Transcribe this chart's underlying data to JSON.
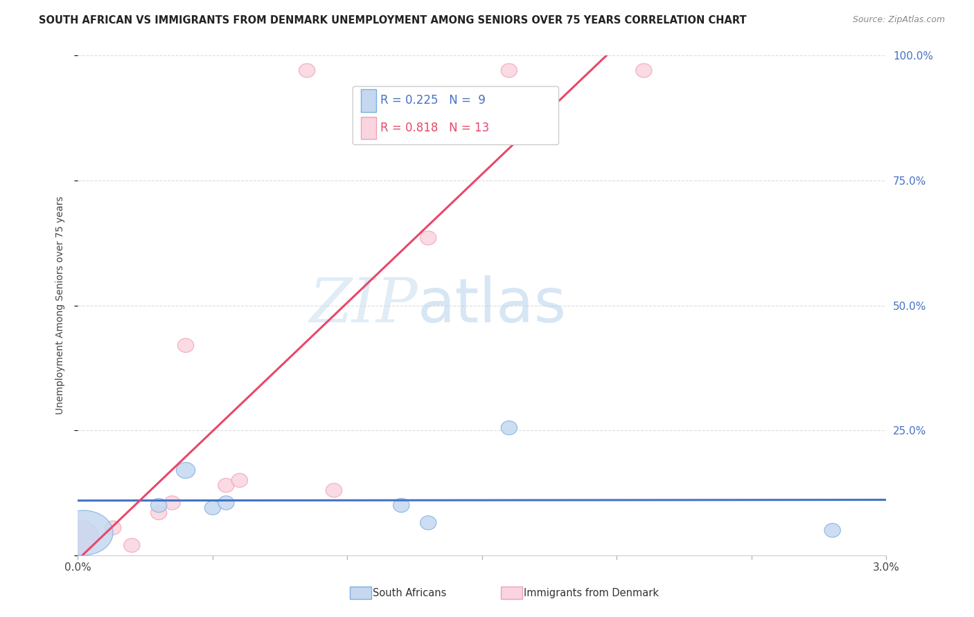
{
  "title": "SOUTH AFRICAN VS IMMIGRANTS FROM DENMARK UNEMPLOYMENT AMONG SENIORS OVER 75 YEARS CORRELATION CHART",
  "source": "Source: ZipAtlas.com",
  "ylabel": "Unemployment Among Seniors over 75 years",
  "xlim": [
    0.0,
    0.03
  ],
  "ylim": [
    0.0,
    1.0
  ],
  "xticks": [
    0.0,
    0.005,
    0.01,
    0.015,
    0.02,
    0.025,
    0.03
  ],
  "xticklabels": [
    "0.0%",
    "",
    "",
    "",
    "",
    "",
    "3.0%"
  ],
  "yticks": [
    0.0,
    0.25,
    0.5,
    0.75,
    1.0
  ],
  "yticklabels_right": [
    "",
    "25.0%",
    "50.0%",
    "75.0%",
    "100.0%"
  ],
  "south_africans_x": [
    0.0002,
    0.003,
    0.004,
    0.005,
    0.0055,
    0.012,
    0.013,
    0.016,
    0.028
  ],
  "south_africans_y": [
    0.05,
    0.1,
    0.17,
    0.095,
    0.105,
    0.1,
    0.065,
    0.255,
    0.05
  ],
  "south_africans_size_w": [
    0.0012,
    0.0006,
    0.0007,
    0.0006,
    0.0006,
    0.0006,
    0.0006,
    0.0006,
    0.0006
  ],
  "south_africans_size_h": [
    0.048,
    0.028,
    0.032,
    0.028,
    0.028,
    0.028,
    0.028,
    0.028,
    0.028
  ],
  "immigrants_denmark_x": [
    5e-05,
    0.0013,
    0.002,
    0.003,
    0.0035,
    0.004,
    0.0055,
    0.006,
    0.0085,
    0.0095,
    0.013,
    0.016,
    0.021
  ],
  "immigrants_denmark_y": [
    0.04,
    0.055,
    0.02,
    0.085,
    0.105,
    0.42,
    0.14,
    0.15,
    0.97,
    0.13,
    0.635,
    0.97,
    0.97
  ],
  "immigrants_denmark_size_w": [
    0.0006,
    0.0006,
    0.0006,
    0.0006,
    0.0006,
    0.0006,
    0.0006,
    0.0006,
    0.0006,
    0.0006,
    0.0006,
    0.0006,
    0.0006
  ],
  "immigrants_denmark_size_h": [
    0.028,
    0.028,
    0.028,
    0.028,
    0.028,
    0.028,
    0.028,
    0.028,
    0.028,
    0.028,
    0.028,
    0.028,
    0.028
  ],
  "sa_R": 0.225,
  "sa_N": 9,
  "dk_R": 0.818,
  "dk_N": 13,
  "sa_color": "#c5d8f0",
  "sa_edge_color": "#7baee0",
  "sa_line_color": "#4472c4",
  "dk_color": "#fad4df",
  "dk_edge_color": "#f0a0b8",
  "dk_line_color": "#e8476a",
  "background_color": "#ffffff",
  "grid_color": "#dddddd",
  "watermark_zip": "ZIP",
  "watermark_atlas": "atlas",
  "legend_label_sa": "South Africans",
  "legend_label_dk": "Immigrants from Denmark"
}
